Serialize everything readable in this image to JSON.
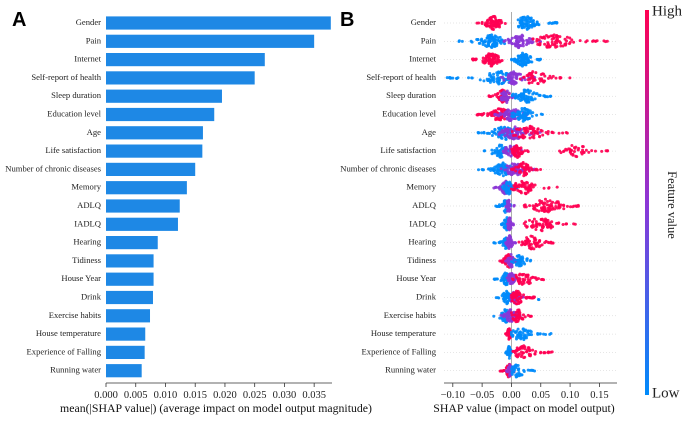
{
  "chart_data": [
    {
      "type": "bar",
      "panel_label": "A",
      "orientation": "horizontal",
      "categories": [
        "Gender",
        "Pain",
        "Internet",
        "Self-report of health",
        "Sleep duration",
        "Education level",
        "Age",
        "Life satisfaction",
        "Number of chronic diseases",
        "Memory",
        "ADLQ",
        "IADLQ",
        "Hearing",
        "Tidiness",
        "House Year",
        "Drink",
        "Exercise habits",
        "House temperature",
        "Experience of Falling",
        "Running water"
      ],
      "values": [
        0.0378,
        0.035,
        0.0267,
        0.025,
        0.0195,
        0.0182,
        0.0163,
        0.0162,
        0.015,
        0.0136,
        0.0124,
        0.0121,
        0.0087,
        0.008,
        0.008,
        0.0079,
        0.0074,
        0.0066,
        0.0065,
        0.006
      ],
      "xlabel": "mean(|SHAP value|) (average impact on model output magnitude)",
      "xlim": [
        0,
        0.038
      ],
      "xticks": [
        "0.000",
        "0.005",
        "0.010",
        "0.015",
        "0.020",
        "0.025",
        "0.030",
        "0.035"
      ],
      "bar_color": "#1e88e5"
    },
    {
      "type": "scatter",
      "subtype": "beeswarm",
      "panel_label": "B",
      "categories": [
        "Gender",
        "Pain",
        "Internet",
        "Self-report of health",
        "Sleep duration",
        "Education level",
        "Age",
        "Life satisfaction",
        "Number of chronic diseases",
        "Memory",
        "ADLQ",
        "IADLQ",
        "Hearing",
        "Tidiness",
        "House Year",
        "Drink",
        "Exercise habits",
        "House temperature",
        "Experience of Falling",
        "Running water"
      ],
      "xlabel": "SHAP value (impact on model output)",
      "xlim": [
        -0.115,
        0.18
      ],
      "xticks": [
        "-0.10",
        "-0.05",
        "0.00",
        "0.05",
        "0.10",
        "0.15"
      ],
      "features": [
        {
          "groups": [
            {
              "min": -0.06,
              "max": -0.01,
              "color": "high",
              "n": 90,
              "center": -0.03
            },
            {
              "min": 0.01,
              "max": 0.08,
              "color": "low",
              "n": 90,
              "center": 0.025
            }
          ]
        },
        {
          "groups": [
            {
              "min": -0.09,
              "max": -0.01,
              "color": "low",
              "n": 90,
              "center": -0.035
            },
            {
              "min": -0.015,
              "max": 0.05,
              "color": "mid",
              "n": 80,
              "center": 0.015
            },
            {
              "min": 0.03,
              "max": 0.165,
              "color": "high",
              "n": 80,
              "center": 0.07
            }
          ]
        },
        {
          "groups": [
            {
              "min": -0.07,
              "max": -0.015,
              "color": "high",
              "n": 90,
              "center": -0.035
            },
            {
              "min": 0.0,
              "max": 0.05,
              "color": "low",
              "n": 90,
              "center": 0.02
            }
          ]
        },
        {
          "groups": [
            {
              "min": -0.11,
              "max": 0.0,
              "color": "low",
              "n": 80,
              "center": -0.02
            },
            {
              "min": -0.02,
              "max": 0.04,
              "color": "mid",
              "n": 60,
              "center": 0.005
            },
            {
              "min": 0.01,
              "max": 0.1,
              "color": "high",
              "n": 50,
              "center": 0.04
            }
          ]
        },
        {
          "groups": [
            {
              "min": -0.04,
              "max": 0.0,
              "color": "high",
              "n": 50,
              "center": -0.015
            },
            {
              "min": -0.02,
              "max": 0.02,
              "color": "mid",
              "n": 40,
              "center": -0.008
            },
            {
              "min": 0.0,
              "max": 0.07,
              "color": "low",
              "n": 80,
              "center": 0.025
            }
          ]
        },
        {
          "groups": [
            {
              "min": -0.07,
              "max": 0.0,
              "color": "high",
              "n": 80,
              "center": -0.02
            },
            {
              "min": -0.03,
              "max": 0.03,
              "color": "mid",
              "n": 70,
              "center": 0.0
            },
            {
              "min": 0.0,
              "max": 0.06,
              "color": "low",
              "n": 70,
              "center": 0.02
            }
          ]
        },
        {
          "groups": [
            {
              "min": -0.06,
              "max": 0.02,
              "color": "low",
              "n": 80,
              "center": -0.01
            },
            {
              "min": -0.03,
              "max": 0.05,
              "color": "mid",
              "n": 80,
              "center": 0.005
            },
            {
              "min": 0.0,
              "max": 0.1,
              "color": "high",
              "n": 60,
              "center": 0.03
            }
          ]
        },
        {
          "groups": [
            {
              "min": -0.05,
              "max": 0.0,
              "color": "low",
              "n": 40,
              "center": -0.02
            },
            {
              "min": -0.02,
              "max": 0.03,
              "color": "mid",
              "n": 40,
              "center": 0.0
            },
            {
              "min": 0.0,
              "max": 0.03,
              "color": "high",
              "n": 60,
              "center": 0.01
            },
            {
              "min": 0.08,
              "max": 0.165,
              "color": "high",
              "n": 40,
              "center": 0.11
            }
          ]
        },
        {
          "groups": [
            {
              "min": -0.06,
              "max": 0.0,
              "color": "low",
              "n": 70,
              "center": -0.015
            },
            {
              "min": -0.02,
              "max": 0.04,
              "color": "mid",
              "n": 70,
              "center": 0.005
            },
            {
              "min": 0.0,
              "max": 0.05,
              "color": "high",
              "n": 50,
              "center": 0.02
            }
          ]
        },
        {
          "groups": [
            {
              "min": -0.03,
              "max": 0.0,
              "color": "mid",
              "n": 60,
              "center": -0.01
            },
            {
              "min": -0.02,
              "max": 0.01,
              "color": "low",
              "n": 40,
              "center": -0.005
            },
            {
              "min": 0.0,
              "max": 0.08,
              "color": "high",
              "n": 60,
              "center": 0.02
            }
          ]
        },
        {
          "groups": [
            {
              "min": -0.03,
              "max": 0.0,
              "color": "low",
              "n": 40,
              "center": -0.01
            },
            {
              "min": -0.01,
              "max": 0.005,
              "color": "mid",
              "n": 30,
              "center": -0.005
            },
            {
              "min": 0.02,
              "max": 0.135,
              "color": "high",
              "n": 80,
              "center": 0.06
            }
          ]
        },
        {
          "groups": [
            {
              "min": -0.02,
              "max": 0.0,
              "color": "low",
              "n": 50,
              "center": -0.008
            },
            {
              "min": -0.01,
              "max": 0.005,
              "color": "mid",
              "n": 30,
              "center": -0.003
            },
            {
              "min": 0.02,
              "max": 0.12,
              "color": "high",
              "n": 70,
              "center": 0.05
            }
          ]
        },
        {
          "groups": [
            {
              "min": -0.03,
              "max": 0.0,
              "color": "low",
              "n": 50,
              "center": -0.008
            },
            {
              "min": -0.01,
              "max": 0.01,
              "color": "mid",
              "n": 40,
              "center": -0.003
            },
            {
              "min": 0.01,
              "max": 0.08,
              "color": "high",
              "n": 60,
              "center": 0.035
            }
          ]
        },
        {
          "groups": [
            {
              "min": -0.02,
              "max": 0.01,
              "color": "high",
              "n": 60,
              "center": -0.005
            },
            {
              "min": -0.01,
              "max": 0.01,
              "color": "mid",
              "n": 30,
              "center": 0.0
            },
            {
              "min": 0.0,
              "max": 0.04,
              "color": "low",
              "n": 40,
              "center": 0.015
            }
          ]
        },
        {
          "groups": [
            {
              "min": -0.03,
              "max": 0.0,
              "color": "low",
              "n": 50,
              "center": -0.01
            },
            {
              "min": -0.01,
              "max": 0.02,
              "color": "mid",
              "n": 40,
              "center": 0.0
            },
            {
              "min": 0.0,
              "max": 0.06,
              "color": "high",
              "n": 50,
              "center": 0.02
            }
          ]
        },
        {
          "groups": [
            {
              "min": -0.03,
              "max": 0.0,
              "color": "low",
              "n": 50,
              "center": -0.008
            },
            {
              "min": -0.01,
              "max": 0.02,
              "color": "mid",
              "n": 40,
              "center": 0.005
            },
            {
              "min": 0.0,
              "max": 0.04,
              "color": "high",
              "n": 60,
              "center": 0.01
            },
            {
              "min": 0.04,
              "max": 0.05,
              "color": "low",
              "n": 2,
              "center": 0.045
            }
          ]
        },
        {
          "groups": [
            {
              "min": -0.035,
              "max": 0.0,
              "color": "low",
              "n": 50,
              "center": -0.01
            },
            {
              "min": -0.02,
              "max": 0.02,
              "color": "mid",
              "n": 50,
              "center": 0.0
            },
            {
              "min": 0.0,
              "max": 0.04,
              "color": "high",
              "n": 40,
              "center": 0.01
            }
          ]
        },
        {
          "groups": [
            {
              "min": -0.01,
              "max": 0.0,
              "color": "high",
              "n": 50,
              "center": -0.004
            },
            {
              "min": 0.0,
              "max": 0.07,
              "color": "low",
              "n": 60,
              "center": 0.015
            }
          ]
        },
        {
          "groups": [
            {
              "min": -0.01,
              "max": 0.0,
              "color": "low",
              "n": 40,
              "center": -0.004
            },
            {
              "min": 0.0,
              "max": 0.07,
              "color": "high",
              "n": 60,
              "center": 0.02
            }
          ]
        },
        {
          "groups": [
            {
              "min": -0.02,
              "max": 0.005,
              "color": "high",
              "n": 50,
              "center": -0.004
            },
            {
              "min": -0.01,
              "max": 0.005,
              "color": "mid",
              "n": 25,
              "center": -0.002
            },
            {
              "min": 0.0,
              "max": 0.045,
              "color": "low",
              "n": 40,
              "center": 0.01
            }
          ]
        }
      ]
    }
  ],
  "colorbar": {
    "high_label": "High",
    "low_label": "Low",
    "title": "Feature value",
    "low_color": "#008bfb",
    "mid_color": "#8c36d6",
    "high_color": "#ff0052"
  }
}
